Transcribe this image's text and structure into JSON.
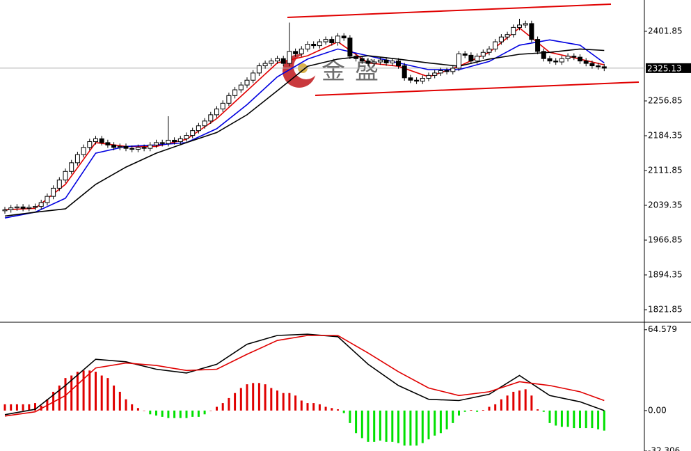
{
  "chart_data": [
    {
      "type": "candlestick",
      "open": [
        2028,
        2030,
        2034,
        2036,
        2033,
        2035,
        2037,
        2045,
        2058,
        2075,
        2092,
        2110,
        2128,
        2145,
        2160,
        2172,
        2178,
        2170,
        2165,
        2160,
        2162,
        2158,
        2156,
        2160,
        2158,
        2165,
        2170,
        2168,
        2175,
        2172,
        2178,
        2185,
        2195,
        2205,
        2215,
        2228,
        2240,
        2252,
        2268,
        2280,
        2290,
        2300,
        2315,
        2330,
        2335,
        2340,
        2345,
        2335,
        2360,
        2355,
        2365,
        2375,
        2372,
        2380,
        2385,
        2378,
        2392,
        2388,
        2350,
        2345,
        2340,
        2335,
        2338,
        2342,
        2336,
        2340,
        2330,
        2305,
        2300,
        2298,
        2304,
        2310,
        2315,
        2320,
        2318,
        2325,
        2355,
        2352,
        2340,
        2350,
        2358,
        2365,
        2380,
        2390,
        2395,
        2410,
        2415,
        2418,
        2385,
        2360,
        2345,
        2340,
        2338,
        2345,
        2350,
        2348,
        2340,
        2335,
        2330,
        2328
      ],
      "high": [
        2036,
        2040,
        2042,
        2042,
        2041,
        2043,
        2051,
        2064,
        2081,
        2098,
        2116,
        2134,
        2151,
        2166,
        2178,
        2184,
        2184,
        2176,
        2171,
        2168,
        2168,
        2164,
        2166,
        2166,
        2171,
        2176,
        2176,
        2225,
        2181,
        2184,
        2191,
        2201,
        2211,
        2221,
        2234,
        2246,
        2258,
        2274,
        2286,
        2296,
        2306,
        2321,
        2336,
        2341,
        2346,
        2351,
        2351,
        2420,
        2366,
        2371,
        2381,
        2381,
        2386,
        2391,
        2391,
        2398,
        2398,
        2394,
        2356,
        2351,
        2346,
        2344,
        2348,
        2348,
        2346,
        2346,
        2336,
        2311,
        2306,
        2310,
        2316,
        2321,
        2326,
        2326,
        2331,
        2361,
        2361,
        2358,
        2356,
        2364,
        2371,
        2386,
        2396,
        2401,
        2416,
        2428,
        2424,
        2424,
        2391,
        2366,
        2351,
        2346,
        2351,
        2356,
        2356,
        2354,
        2346,
        2341,
        2336,
        2334
      ],
      "low": [
        2022,
        2024,
        2028,
        2027,
        2027,
        2029,
        2031,
        2039,
        2052,
        2069,
        2086,
        2104,
        2122,
        2139,
        2154,
        2166,
        2164,
        2159,
        2154,
        2154,
        2152,
        2150,
        2150,
        2152,
        2152,
        2159,
        2162,
        2162,
        2166,
        2166,
        2172,
        2179,
        2189,
        2199,
        2209,
        2222,
        2234,
        2246,
        2262,
        2274,
        2284,
        2294,
        2309,
        2324,
        2329,
        2334,
        2329,
        2329,
        2349,
        2349,
        2359,
        2366,
        2366,
        2374,
        2372,
        2372,
        2382,
        2344,
        2339,
        2334,
        2329,
        2329,
        2332,
        2330,
        2330,
        2324,
        2299,
        2294,
        2292,
        2292,
        2298,
        2304,
        2309,
        2312,
        2312,
        2319,
        2346,
        2334,
        2334,
        2344,
        2352,
        2359,
        2374,
        2384,
        2389,
        2404,
        2409,
        2379,
        2354,
        2339,
        2334,
        2332,
        2332,
        2339,
        2342,
        2334,
        2329,
        2324,
        2322,
        2319
      ],
      "close": [
        2030,
        2034,
        2036,
        2033,
        2035,
        2037,
        2045,
        2058,
        2075,
        2092,
        2110,
        2128,
        2145,
        2160,
        2172,
        2178,
        2170,
        2165,
        2160,
        2162,
        2158,
        2156,
        2160,
        2158,
        2165,
        2170,
        2168,
        2175,
        2172,
        2178,
        2185,
        2195,
        2205,
        2215,
        2228,
        2240,
        2252,
        2268,
        2280,
        2290,
        2300,
        2315,
        2330,
        2335,
        2340,
        2345,
        2335,
        2360,
        2355,
        2365,
        2375,
        2372,
        2380,
        2385,
        2378,
        2392,
        2388,
        2350,
        2345,
        2340,
        2335,
        2338,
        2342,
        2336,
        2340,
        2330,
        2305,
        2300,
        2298,
        2304,
        2310,
        2315,
        2320,
        2318,
        2325,
        2355,
        2352,
        2340,
        2350,
        2358,
        2365,
        2380,
        2390,
        2395,
        2410,
        2415,
        2418,
        2385,
        2360,
        2345,
        2340,
        2338,
        2345,
        2350,
        2348,
        2340,
        2335,
        2330,
        2328,
        2325.13
      ],
      "up_color": "#ffffff",
      "down_color": "#000000",
      "series": [
        {
          "color": "#e00000",
          "x": [
            0,
            5,
            10,
            15,
            20,
            25,
            30,
            35,
            40,
            45,
            50,
            55,
            60,
            65,
            70,
            75,
            80,
            85,
            90,
            95,
            99
          ],
          "values": [
            2030,
            2033,
            2083,
            2170,
            2162,
            2162,
            2177,
            2220,
            2278,
            2336,
            2351,
            2380,
            2336,
            2329,
            2307,
            2329,
            2358,
            2409,
            2358,
            2344,
            2332
          ]
        },
        {
          "color": "#0000e0",
          "x": [
            0,
            5,
            10,
            15,
            20,
            25,
            30,
            35,
            40,
            45,
            50,
            55,
            60,
            65,
            70,
            75,
            80,
            85,
            90,
            95,
            99
          ],
          "values": [
            2013,
            2025,
            2054,
            2148,
            2162,
            2165,
            2170,
            2199,
            2249,
            2307,
            2344,
            2365,
            2351,
            2336,
            2322,
            2322,
            2339,
            2373,
            2384,
            2373,
            2336
          ]
        },
        {
          "color": "#000000",
          "x": [
            0,
            5,
            10,
            15,
            20,
            25,
            30,
            35,
            40,
            45,
            50,
            55,
            60,
            65,
            70,
            75,
            80,
            85,
            90,
            95,
            99
          ],
          "values": [
            2017,
            2025,
            2032,
            2083,
            2119,
            2148,
            2170,
            2191,
            2228,
            2278,
            2329,
            2344,
            2351,
            2344,
            2336,
            2329,
            2344,
            2354,
            2358,
            2365,
            2362
          ]
        }
      ],
      "ylim": [
        1797.2,
        2467.1
      ],
      "yticks": [
        2401.85,
        2256.85,
        2184.35,
        2111.85,
        2039.35,
        1966.85,
        1894.35,
        1821.85
      ],
      "last_price": 2325.13,
      "watermark": [
        "金",
        "盛"
      ]
    },
    {
      "type": "macd",
      "histogram": [
        5,
        5,
        5,
        5,
        5,
        6,
        4,
        9,
        15,
        20,
        26,
        28,
        31,
        32,
        32,
        31,
        28,
        26,
        20,
        15,
        9,
        5,
        2,
        0,
        -3,
        -4,
        -5,
        -6,
        -6,
        -6,
        -6,
        -5,
        -5,
        -3,
        0,
        3,
        6,
        10,
        14,
        18,
        21,
        22,
        22,
        21,
        18,
        16,
        14,
        14,
        12,
        8,
        6,
        6,
        5,
        3,
        2,
        1,
        -2,
        -10,
        -18,
        -22,
        -25,
        -25,
        -24,
        -25,
        -25,
        -26,
        -28,
        -28,
        -28,
        -26,
        -23,
        -20,
        -18,
        -15,
        -10,
        -4,
        -1,
        0.5,
        -1,
        0.5,
        3,
        5,
        9,
        12,
        15,
        16,
        17,
        12,
        1,
        -1,
        -10,
        -12,
        -13,
        -13,
        -14,
        -14,
        -14,
        -14,
        -15,
        -16
      ],
      "pos_color": "#e00000",
      "neg_color": "#00e000",
      "series": [
        {
          "color": "#000000",
          "x": [
            0,
            5,
            10,
            15,
            20,
            25,
            30,
            35,
            40,
            45,
            50,
            55,
            60,
            65,
            70,
            75,
            80,
            85,
            90,
            95,
            99
          ],
          "values": [
            -3.3,
            1,
            20,
            41,
            39,
            33,
            30,
            37,
            53,
            60,
            61,
            59,
            37,
            20,
            9,
            8,
            13,
            28,
            12,
            7,
            0
          ]
        },
        {
          "color": "#e00000",
          "x": [
            0,
            5,
            10,
            15,
            20,
            25,
            30,
            35,
            40,
            45,
            50,
            55,
            60,
            65,
            70,
            75,
            80,
            85,
            90,
            95,
            99
          ],
          "values": [
            -4.4,
            -1,
            12,
            34,
            38,
            36,
            32,
            33,
            45,
            56,
            60,
            60,
            46,
            31,
            18,
            12,
            15,
            23,
            20,
            15,
            8
          ]
        }
      ],
      "ylim": [
        -32.306,
        70
      ],
      "yticks": [
        64.579,
        {
          "value": 0,
          "label": "0.00"
        },
        -32.306
      ]
    }
  ]
}
